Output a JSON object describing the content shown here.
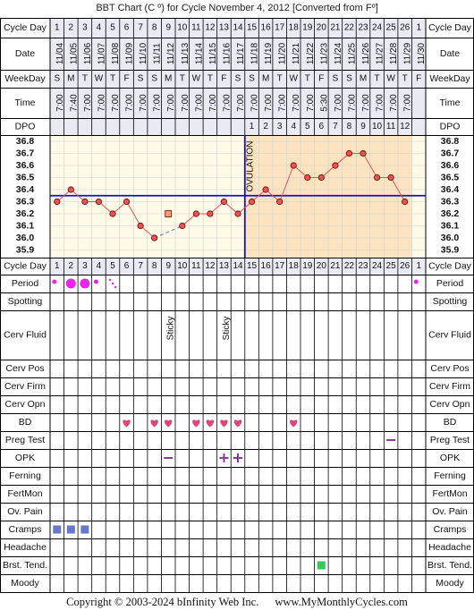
{
  "title": "BBT Chart (C º) for Cycle November 4, 2012  [Converted from Fº]",
  "footer": {
    "copyright": "Copyright © 2003-2024 bInfinity Web Inc.",
    "site": "www.MyMonthlyCycles.com"
  },
  "colors": {
    "grid": "#000000",
    "follicular_bg": "#fffbe8",
    "luteal_bg": "#fbe4bf",
    "header_bg": "#eaeaf2",
    "temp_line": "#e05555",
    "point_fill": "#e05555",
    "coverline": "#1111cc",
    "ovulation_line": "#1111cc",
    "period": "#ee22ee",
    "bd_heart": "#e0457a",
    "opk": "#8e3a9c",
    "cramps": "#6677cc",
    "breast_tenderness": "#33cc55",
    "excluded_point": "#ff9a6a"
  },
  "labels": {
    "cycle_day": "Cycle Day",
    "date": "Date",
    "weekday": "WeekDay",
    "time": "Time",
    "dpo": "DPO",
    "period": "Period",
    "spotting": "Spotting",
    "cerv_fluid": "Cerv Fluid",
    "cerv_pos": "Cerv Pos",
    "cerv_firm": "Cerv Firm",
    "cerv_opn": "Cerv Opn",
    "bd": "BD",
    "preg_test": "Preg Test",
    "opk": "OPK",
    "ferning": "Ferning",
    "fertmon": "FertMon",
    "ov_pain": "Ov. Pain",
    "cramps": "Cramps",
    "headache": "Headache",
    "brst_tend": "Brst. Tend.",
    "moody": "Moody",
    "ovulation": "OVULATION"
  },
  "cycle_days": [
    "1",
    "2",
    "3",
    "4",
    "5",
    "6",
    "7",
    "8",
    "9",
    "10",
    "11",
    "12",
    "13",
    "14",
    "15",
    "16",
    "17",
    "18",
    "19",
    "20",
    "21",
    "22",
    "23",
    "24",
    "25",
    "26",
    "1"
  ],
  "dates": [
    "11/04",
    "11/05",
    "11/06",
    "11/07",
    "11/08",
    "11/09",
    "11/10",
    "11/11",
    "11/12",
    "11/13",
    "11/14",
    "11/15",
    "11/16",
    "11/17",
    "11/18",
    "11/19",
    "11/20",
    "11/21",
    "11/22",
    "11/23",
    "11/24",
    "11/25",
    "11/26",
    "11/27",
    "11/28",
    "11/29",
    "11/30"
  ],
  "weekdays": [
    "S",
    "M",
    "T",
    "W",
    "T",
    "F",
    "S",
    "S",
    "M",
    "T",
    "W",
    "T",
    "F",
    "S",
    "S",
    "M",
    "T",
    "W",
    "T",
    "F",
    "S",
    "S",
    "M",
    "T",
    "W",
    "T",
    "F"
  ],
  "times": [
    "7:00",
    "7:40",
    "7:00",
    "7:00",
    "7:00",
    "7:00",
    "7:00",
    "7:00",
    "7:00",
    "7:00",
    "7:00",
    "7:00",
    "7:00",
    "7:00",
    "7:00",
    "7:00",
    "7:00",
    "7:00",
    "7:00",
    "5:30",
    "7:00",
    "7:00",
    "7:00",
    "7:00",
    "7:00",
    "7:00",
    ""
  ],
  "dpo": [
    "",
    "",
    "",
    "",
    "",
    "",
    "",
    "",
    "",
    "",
    "",
    "",
    "",
    "",
    "1",
    "2",
    "3",
    "4",
    "5",
    "6",
    "7",
    "8",
    "9",
    "10",
    "11",
    "12",
    ""
  ],
  "chart_data": {
    "type": "line",
    "x": [
      1,
      2,
      3,
      4,
      5,
      6,
      7,
      8,
      9,
      10,
      11,
      12,
      13,
      14,
      15,
      16,
      17,
      18,
      19,
      20,
      21,
      22,
      23,
      24,
      25,
      26,
      27
    ],
    "y_ticks": [
      "36.8",
      "36.7",
      "36.6",
      "36.5",
      "36.4",
      "36.3",
      "36.2",
      "36.1",
      "36.0",
      "35.9"
    ],
    "ylim": [
      35.85,
      36.85
    ],
    "temperatures": [
      36.3,
      36.4,
      36.3,
      36.3,
      36.2,
      36.3,
      36.1,
      36.0,
      null,
      36.1,
      36.2,
      36.2,
      36.3,
      36.2,
      36.3,
      36.4,
      36.3,
      36.6,
      36.5,
      36.5,
      36.6,
      36.7,
      36.7,
      36.5,
      36.5,
      36.3,
      null
    ],
    "excluded_points": [
      {
        "day": 9,
        "temp": 36.2
      }
    ],
    "coverline": 36.35,
    "ovulation_day": 14
  },
  "events": {
    "period": {
      "1": "small",
      "2": "big",
      "3": "big",
      "4": "small",
      "5": "spot",
      "27": "small"
    },
    "cerv_fluid": {
      "9": "Sticky",
      "13": "Sticky"
    },
    "bd": [
      6,
      8,
      9,
      11,
      12,
      13,
      14,
      18
    ],
    "preg_test": [
      25
    ],
    "opk": {
      "9": "neg",
      "13": "pos",
      "14": "pos"
    },
    "cramps": [
      1,
      2,
      3
    ],
    "breast_tenderness": [
      20
    ]
  }
}
